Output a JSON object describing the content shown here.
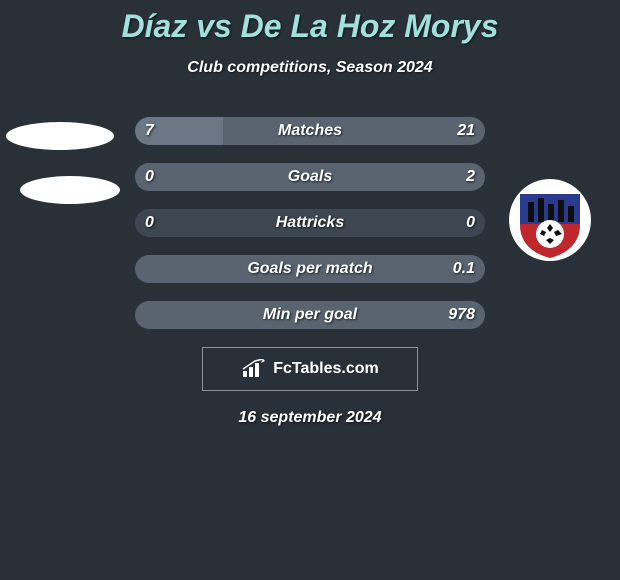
{
  "title": "Díaz vs De La Hoz Morys",
  "subtitle": "Club competitions, Season 2024",
  "date": "16 september 2024",
  "brand": "FcTables.com",
  "colors": {
    "background": "#2a3038",
    "title_color": "#a1e0dd",
    "bar_track": "#3d4651",
    "fill_left": "#6b7785",
    "fill_right": "#5a6470",
    "text": "#ffffff"
  },
  "rows": [
    {
      "label": "Matches",
      "left": "7",
      "right": "21",
      "left_pct": 25,
      "right_pct": 75
    },
    {
      "label": "Goals",
      "left": "0",
      "right": "2",
      "left_pct": 0,
      "right_pct": 100
    },
    {
      "label": "Hattricks",
      "left": "0",
      "right": "0",
      "left_pct": 0,
      "right_pct": 0
    },
    {
      "label": "Goals per match",
      "left": "",
      "right": "0.1",
      "left_pct": 0,
      "right_pct": 100
    },
    {
      "label": "Min per goal",
      "left": "",
      "right": "978",
      "left_pct": 0,
      "right_pct": 100
    }
  ],
  "badge": {
    "circle_bg": "#ffffff",
    "shield_blue": "#2a3a8f",
    "shield_red": "#c0272d",
    "skyline": "#0e0e0e"
  }
}
